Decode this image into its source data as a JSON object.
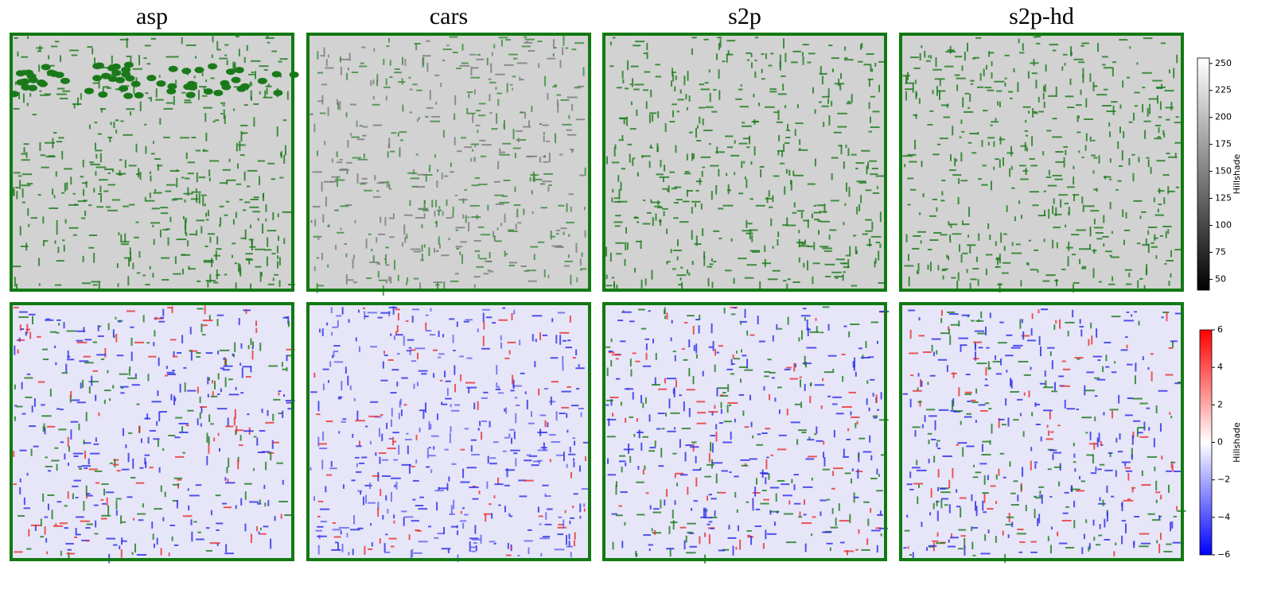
{
  "panels": {
    "titles": [
      "asp",
      "cars",
      "s2p",
      "s2p-hd"
    ]
  },
  "colorbars": [
    {
      "label": "Hillshade",
      "lim": [
        40,
        255
      ],
      "colors": [
        "#000000",
        "#ffffff"
      ],
      "ticks": [
        50,
        75,
        100,
        125,
        150,
        175,
        200,
        225,
        250
      ]
    },
    {
      "label": "Hillshade",
      "lim": [
        -6,
        6
      ],
      "colors": [
        "#0000ff",
        "#ffffff",
        "#ff0000"
      ],
      "ticks": [
        {
          "value": -6,
          "label": "−6"
        },
        {
          "value": -4,
          "label": "−4"
        },
        {
          "value": -2,
          "label": "−2"
        },
        0,
        2,
        4,
        6
      ]
    }
  ]
}
